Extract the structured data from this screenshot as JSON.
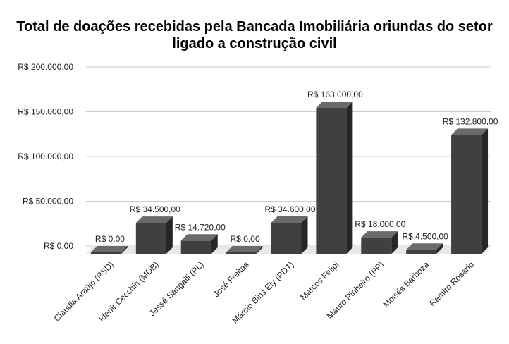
{
  "chart_data": {
    "type": "bar",
    "title_lines": [
      "Total de doações recebidas pela Bancada Imobiliária oriundas do setor",
      "ligado a construção civil"
    ],
    "xlabel": "",
    "ylabel": "",
    "ylim": [
      0,
      200000
    ],
    "y_ticks": [
      0,
      50000,
      100000,
      150000,
      200000
    ],
    "y_tick_labels": [
      "R$ 0,00",
      "R$ 50.000,00",
      "R$ 100.000,00",
      "R$ 150.000,00",
      "R$ 200.000,00"
    ],
    "categories": [
      "Claudia Araújo (PSD)",
      "Idenir Cecchin (MDB)",
      "Jessé Sangalli (PL)",
      "José Freitas",
      "Márcio Bins Ely (PDT)",
      "Marcos Felipi",
      "Mauro Pinheiro (PP)",
      "Moisés Barboza",
      "Ramiro Rosário"
    ],
    "values": [
      0,
      34500,
      14720,
      0,
      34600,
      163000,
      18000,
      4500,
      132800
    ],
    "value_labels": [
      "R$ 0,00",
      "R$ 34.500,00",
      "R$ 14.720,00",
      "R$ 0,00",
      "R$ 34.600,00",
      "R$ 163.000,00",
      "R$ 18.000,00",
      "R$ 4.500,00",
      "R$ 132.800,00"
    ],
    "grid": true,
    "legend": "none",
    "style": "3d",
    "colors": {
      "bar_front": "#404040",
      "bar_top": "#6b6b6b",
      "bar_side": "#262626",
      "floor": "#e8e8e8",
      "gridline": "#cccccc"
    }
  }
}
